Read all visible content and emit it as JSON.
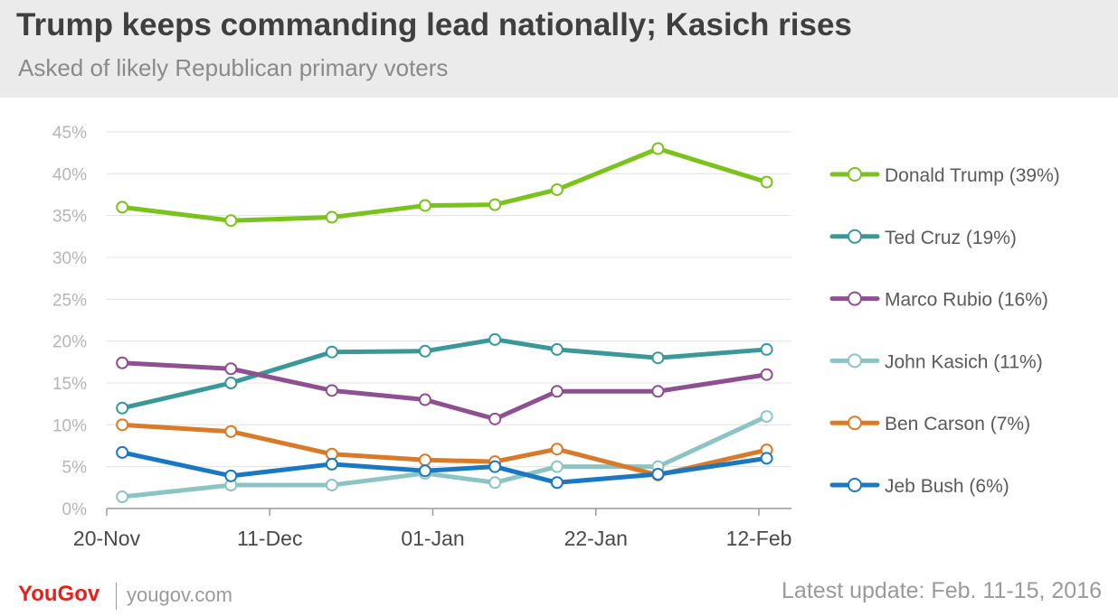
{
  "header": {
    "title": "Trump keeps commanding lead nationally; Kasich rises",
    "subtitle": "Asked of likely Republican primary voters"
  },
  "footer": {
    "brand": "YouGov",
    "site": "yougov.com",
    "update": "Latest update: Feb. 11-15, 2016"
  },
  "chart_data": {
    "type": "line",
    "ylim": [
      0,
      45
    ],
    "yticks": [
      "0%",
      "5%",
      "10%",
      "15%",
      "20%",
      "25%",
      "30%",
      "35%",
      "40%",
      "45%"
    ],
    "xticks": [
      "20-Nov",
      "11-Dec",
      "01-Jan",
      "22-Jan",
      "12-Feb"
    ],
    "x": [
      "Nov 22",
      "Dec 6",
      "Dec 19",
      "Dec 31",
      "Jan 9",
      "Jan 17",
      "Jan 30",
      "Feb 13"
    ],
    "grid": true,
    "legend_position": "right",
    "series": [
      {
        "name": "Donald Trump (39%)",
        "color": "#7ac21c",
        "values": [
          36,
          34.4,
          34.8,
          36.2,
          36.3,
          38.1,
          43,
          39
        ]
      },
      {
        "name": "Ted Cruz (19%)",
        "color": "#3a9898",
        "values": [
          12,
          15,
          18.7,
          18.8,
          20.2,
          19,
          18,
          19
        ]
      },
      {
        "name": "Marco Rubio (16%)",
        "color": "#8e5090",
        "values": [
          17.4,
          16.7,
          14.1,
          13,
          10.7,
          14,
          14,
          16
        ]
      },
      {
        "name": "John Kasich (11%)",
        "color": "#8cc4c4",
        "values": [
          1.4,
          2.8,
          2.8,
          4.2,
          3.1,
          5,
          5,
          11
        ]
      },
      {
        "name": "Ben Carson (7%)",
        "color": "#d97a2a",
        "values": [
          10,
          9.2,
          6.5,
          5.8,
          5.6,
          7.1,
          4,
          7
        ]
      },
      {
        "name": "Jeb Bush (6%)",
        "color": "#1a78c2",
        "values": [
          6.7,
          3.9,
          5.3,
          4.5,
          5,
          3.1,
          4.1,
          6
        ]
      }
    ]
  }
}
